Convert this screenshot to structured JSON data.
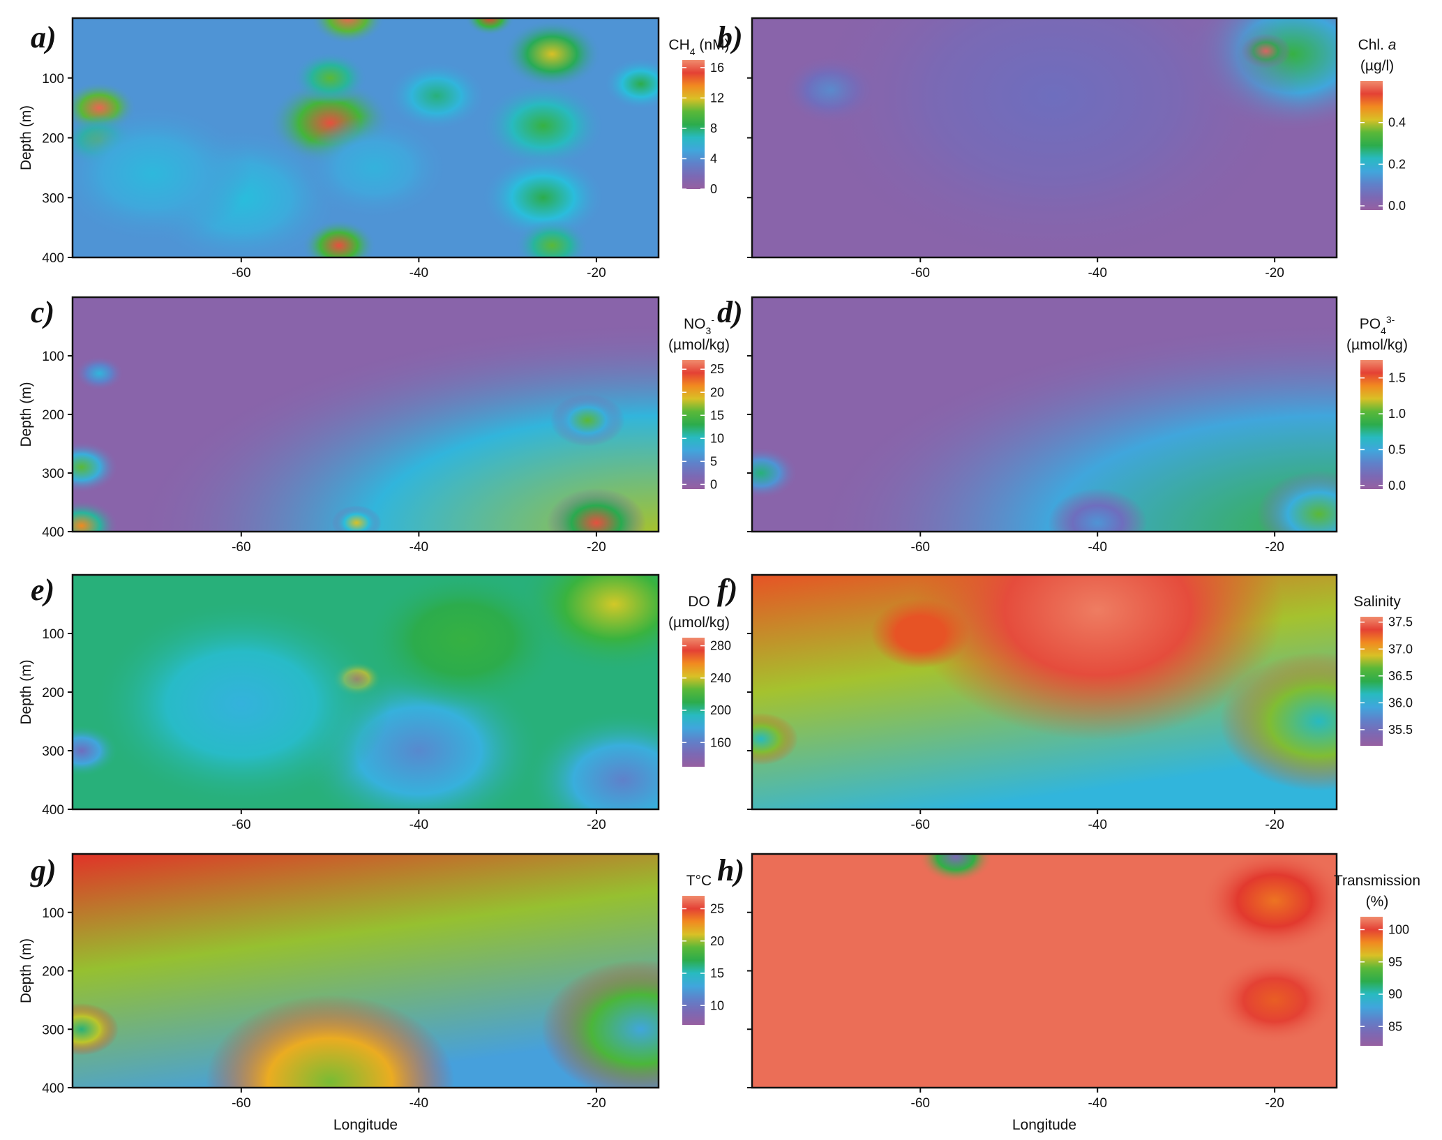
{
  "figure": {
    "xlabel": "Longitude",
    "ylabel": "Depth (m)"
  },
  "chart_data": [
    {
      "type": "heatmap",
      "panel_label": "a)",
      "colorbar": {
        "title_lines": [
          "CH4 (nM)"
        ],
        "title_html": [
          "CH<tspan baseline-shift=\"sub\" font-size=\"14\">4</tspan> (nM)"
        ],
        "ticks": [
          0,
          4,
          8,
          12,
          16
        ],
        "range": [
          0,
          17
        ]
      },
      "x_ticks": [
        -60,
        -40,
        -20
      ],
      "y_ticks": [
        100,
        200,
        300,
        400
      ],
      "xlim": [
        -79,
        -13
      ],
      "ylim": [
        0,
        400
      ],
      "show_y_labels": true,
      "show_xlabel": false,
      "base": 0.25,
      "features": [
        {
          "x": -76,
          "y": 150,
          "v": 0.95,
          "r": 3
        },
        {
          "x": -76,
          "y": 205,
          "v": 0.6,
          "r": 3
        },
        {
          "x": -50,
          "y": 175,
          "v": 0.92,
          "r": 5
        },
        {
          "x": -49,
          "y": 380,
          "v": 0.92,
          "r": 3
        },
        {
          "x": -48,
          "y": 0,
          "v": 0.95,
          "r": 3
        },
        {
          "x": -32,
          "y": 0,
          "v": 0.9,
          "r": 2
        },
        {
          "x": -25,
          "y": 60,
          "v": 0.7,
          "r": 4
        },
        {
          "x": -26,
          "y": 180,
          "v": 0.55,
          "r": 5
        },
        {
          "x": -26,
          "y": 300,
          "v": 0.5,
          "r": 5
        },
        {
          "x": -25,
          "y": 380,
          "v": 0.6,
          "r": 3
        },
        {
          "x": -50,
          "y": 100,
          "v": 0.6,
          "r": 3
        },
        {
          "x": -38,
          "y": 130,
          "v": 0.45,
          "r": 4
        },
        {
          "x": -60,
          "y": 300,
          "v": 0.38,
          "r": 8
        },
        {
          "x": -70,
          "y": 260,
          "v": 0.36,
          "r": 8
        },
        {
          "x": -15,
          "y": 110,
          "v": 0.5,
          "r": 3
        },
        {
          "x": -45,
          "y": 250,
          "v": 0.34,
          "r": 6
        }
      ]
    },
    {
      "type": "heatmap",
      "panel_label": "b)",
      "colorbar": {
        "title_lines": [
          "Chl. a",
          "(µg/l)"
        ],
        "title_html": [
          "Chl. <tspan font-style=\"italic\">a</tspan>",
          "(µg/l)"
        ],
        "ticks": [
          0.0,
          0.2,
          0.4
        ],
        "range": [
          -0.02,
          0.6
        ],
        "tick_format": 1
      },
      "x_ticks": [
        -60,
        -40,
        -20
      ],
      "y_ticks": [
        100,
        200,
        300,
        400
      ],
      "xlim": [
        -79,
        -13
      ],
      "ylim": [
        0,
        400
      ],
      "show_y_labels": false,
      "show_xlabel": false,
      "base": 0.05,
      "features": [
        {
          "x": -18,
          "y": 60,
          "v": 0.55,
          "r": 9
        },
        {
          "x": -21,
          "y": 55,
          "v": 0.95,
          "r": 2
        },
        {
          "x": -70,
          "y": 120,
          "v": 0.25,
          "r": 4
        },
        {
          "x": -45,
          "y": 130,
          "v": 0.15,
          "r": 20
        }
      ]
    },
    {
      "type": "heatmap",
      "panel_label": "c)",
      "colorbar": {
        "title_lines": [
          "NO3-",
          "(µmol/kg)"
        ],
        "title_html": [
          "NO<tspan baseline-shift=\"sub\" font-size=\"14\">3</tspan><tspan baseline-shift=\"super\" font-size=\"14\">-</tspan>",
          "(µmol/kg)"
        ],
        "ticks": [
          0,
          5,
          10,
          15,
          20,
          25
        ],
        "range": [
          -1,
          27
        ]
      },
      "x_ticks": [
        -60,
        -40,
        -20
      ],
      "y_ticks": [
        100,
        200,
        300,
        400
      ],
      "xlim": [
        -79,
        -13
      ],
      "ylim": [
        0,
        400
      ],
      "show_y_labels": true,
      "show_xlabel": false,
      "base": 0.05,
      "gradient": {
        "from_x": -35,
        "from_y": 200,
        "strength": 0.6
      },
      "features": [
        {
          "x": -20,
          "y": 385,
          "v": 0.92,
          "r": 4
        },
        {
          "x": -21,
          "y": 210,
          "v": 0.6,
          "r": 3
        },
        {
          "x": -78,
          "y": 390,
          "v": 0.8,
          "r": 3
        },
        {
          "x": -78,
          "y": 290,
          "v": 0.6,
          "r": 3
        },
        {
          "x": -47,
          "y": 385,
          "v": 0.7,
          "r": 2
        },
        {
          "x": -76,
          "y": 130,
          "v": 0.35,
          "r": 2
        }
      ]
    },
    {
      "type": "heatmap",
      "panel_label": "d)",
      "colorbar": {
        "title_lines": [
          "PO43-",
          "(µmol/kg)"
        ],
        "title_html": [
          "PO<tspan baseline-shift=\"sub\" font-size=\"14\">4</tspan><tspan baseline-shift=\"super\" font-size=\"14\">3-</tspan>",
          "(µmol/kg)"
        ],
        "ticks": [
          0.0,
          0.5,
          1.0,
          1.5
        ],
        "range": [
          -0.05,
          1.75
        ],
        "tick_format": 1
      },
      "x_ticks": [
        -60,
        -40,
        -20
      ],
      "y_ticks": [
        100,
        200,
        300,
        400
      ],
      "xlim": [
        -79,
        -13
      ],
      "ylim": [
        0,
        400
      ],
      "show_y_labels": false,
      "show_xlabel": false,
      "base": 0.05,
      "gradient": {
        "from_x": -35,
        "from_y": 230,
        "strength": 0.5
      },
      "features": [
        {
          "x": -15,
          "y": 370,
          "v": 0.6,
          "r": 5
        },
        {
          "x": -78,
          "y": 300,
          "v": 0.45,
          "r": 3
        },
        {
          "x": -40,
          "y": 385,
          "v": 0.25,
          "r": 4
        }
      ]
    },
    {
      "type": "heatmap",
      "panel_label": "e)",
      "colorbar": {
        "title_lines": [
          "DO",
          "(µmol/kg)"
        ],
        "title_html": [
          "DO",
          "(µmol/kg)"
        ],
        "ticks": [
          160,
          200,
          240,
          280
        ],
        "range": [
          130,
          290
        ]
      },
      "x_ticks": [
        -60,
        -40,
        -20
      ],
      "y_ticks": [
        100,
        200,
        300,
        400
      ],
      "xlim": [
        -79,
        -13
      ],
      "ylim": [
        0,
        400
      ],
      "show_y_labels": true,
      "show_xlabel": false,
      "base": 0.45,
      "features": [
        {
          "x": -47,
          "y": 178,
          "v": 0.95,
          "r": 2
        },
        {
          "x": -18,
          "y": 50,
          "v": 0.68,
          "r": 8
        },
        {
          "x": -40,
          "y": 300,
          "v": 0.22,
          "r": 10
        },
        {
          "x": -17,
          "y": 350,
          "v": 0.2,
          "r": 8
        },
        {
          "x": -60,
          "y": 220,
          "v": 0.34,
          "r": 12
        },
        {
          "x": -78,
          "y": 300,
          "v": 0.15,
          "r": 3
        },
        {
          "x": -35,
          "y": 110,
          "v": 0.55,
          "r": 8
        }
      ]
    },
    {
      "type": "heatmap",
      "panel_label": "f)",
      "colorbar": {
        "title_lines": [
          "Salinity"
        ],
        "title_html": [
          "Salinity"
        ],
        "ticks": [
          35.5,
          36.0,
          36.5,
          37.0,
          37.5
        ],
        "range": [
          35.2,
          37.6
        ],
        "tick_format": 1
      },
      "x_ticks": [
        -60,
        -40,
        -20
      ],
      "y_ticks": [
        100,
        200,
        300,
        400
      ],
      "xlim": [
        -79,
        -13
      ],
      "ylim": [
        0,
        400
      ],
      "show_y_labels": false,
      "show_xlabel": false,
      "base": 0.85,
      "depth_decline": 0.5,
      "features": [
        {
          "x": -40,
          "y": 60,
          "v": 0.98,
          "r": 15
        },
        {
          "x": -60,
          "y": 100,
          "v": 0.85,
          "r": 4
        },
        {
          "x": -15,
          "y": 250,
          "v": 0.4,
          "r": 8
        },
        {
          "x": -78,
          "y": 280,
          "v": 0.4,
          "r": 3
        }
      ]
    },
    {
      "type": "heatmap",
      "panel_label": "g)",
      "colorbar": {
        "title_lines": [
          "T°C"
        ],
        "title_html": [
          "T°C"
        ],
        "ticks": [
          10,
          15,
          20,
          25
        ],
        "range": [
          7,
          27
        ]
      },
      "x_ticks": [
        -60,
        -40,
        -20
      ],
      "y_ticks": [
        100,
        200,
        300,
        400
      ],
      "xlim": [
        -79,
        -13
      ],
      "ylim": [
        0,
        400
      ],
      "show_y_labels": true,
      "show_xlabel": true,
      "base": 0.88,
      "depth_decline": 0.6,
      "features": [
        {
          "x": -15,
          "y": 300,
          "v": 0.3,
          "r": 8
        },
        {
          "x": -78,
          "y": 300,
          "v": 0.45,
          "r": 3
        },
        {
          "x": -50,
          "y": 390,
          "v": 0.62,
          "r": 10
        }
      ]
    },
    {
      "type": "heatmap",
      "panel_label": "h)",
      "colorbar": {
        "title_lines": [
          "Transmission",
          "(%)"
        ],
        "title_html": [
          "Transmission",
          "(%)"
        ],
        "ticks": [
          85,
          90,
          95,
          100
        ],
        "range": [
          82,
          102
        ]
      },
      "x_ticks": [
        -60,
        -40,
        -20
      ],
      "y_ticks": [
        100,
        200,
        300,
        400
      ],
      "xlim": [
        -79,
        -13
      ],
      "ylim": [
        0,
        400
      ],
      "show_y_labels": false,
      "show_xlabel": true,
      "base": 0.96,
      "features": [
        {
          "x": -56,
          "y": 5,
          "v": 0.1,
          "r": 3
        },
        {
          "x": -20,
          "y": 80,
          "v": 0.82,
          "r": 6
        },
        {
          "x": -20,
          "y": 250,
          "v": 0.84,
          "r": 5
        }
      ]
    }
  ]
}
